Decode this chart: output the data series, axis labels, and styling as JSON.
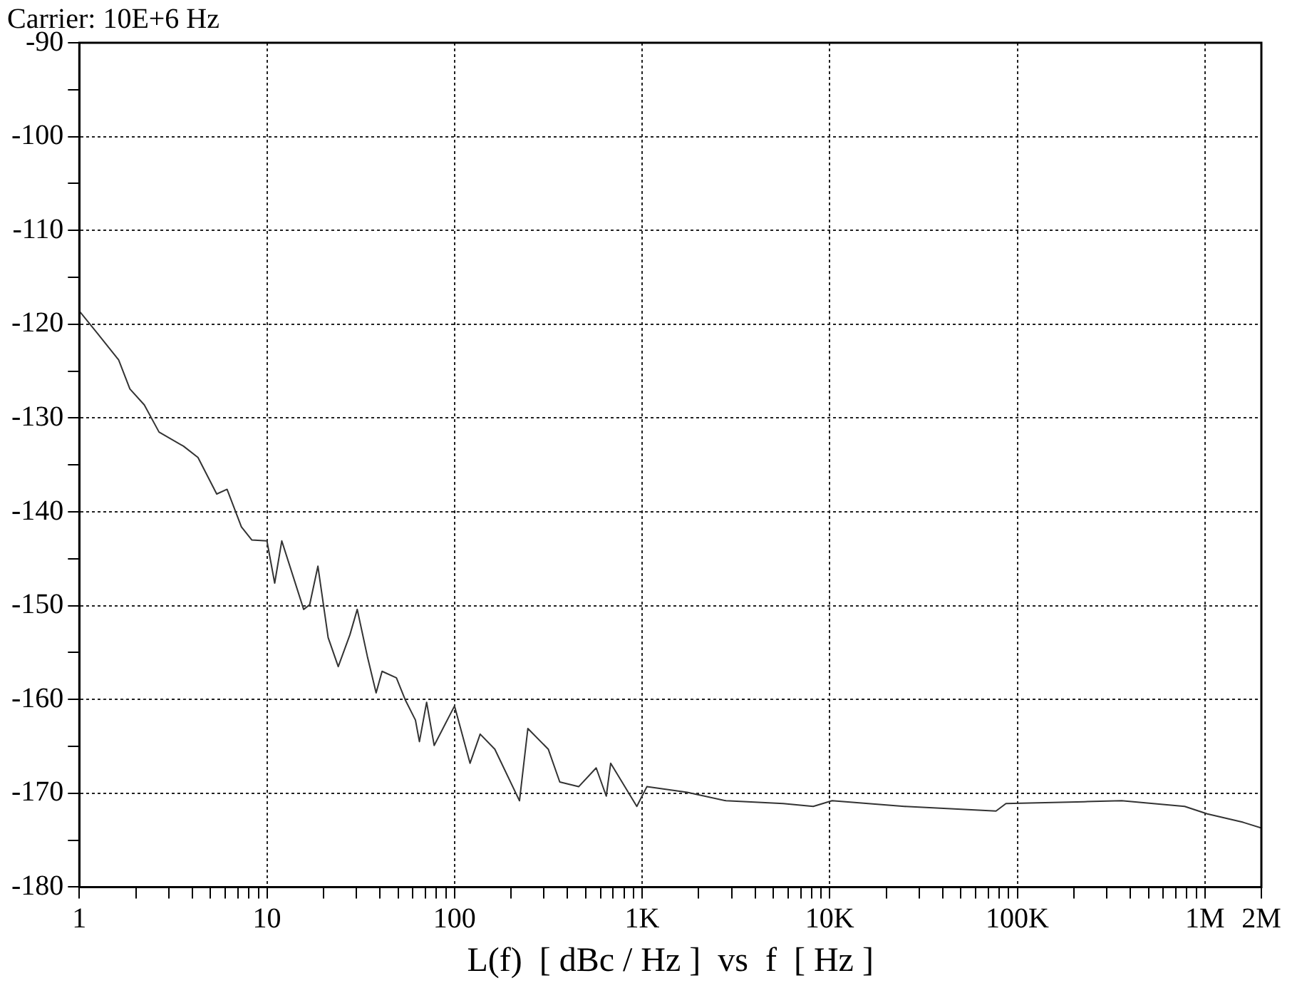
{
  "chart_data": {
    "type": "line",
    "title": "Carrier: 10E+6 Hz",
    "xlabel": "L(f)  [ dBc / Hz ]  vs  f  [ Hz ]",
    "log": "x",
    "grid": true,
    "legend": false,
    "marker": "none",
    "line_style": "solid",
    "xlim": [
      1,
      2000000
    ],
    "ylim": [
      -180,
      -90
    ],
    "xticks": [
      1,
      {
        "value": 2,
        "label": null
      },
      {
        "value": 3,
        "label": null
      },
      {
        "value": 4,
        "label": null
      },
      {
        "value": 5,
        "label": null
      },
      {
        "value": 6,
        "label": null
      },
      {
        "value": 7,
        "label": null
      },
      {
        "value": 8,
        "label": null
      },
      {
        "value": 9,
        "label": null
      },
      10,
      {
        "value": 20,
        "label": null
      },
      {
        "value": 30,
        "label": null
      },
      {
        "value": 40,
        "label": null
      },
      {
        "value": 50,
        "label": null
      },
      {
        "value": 60,
        "label": null
      },
      {
        "value": 70,
        "label": null
      },
      {
        "value": 80,
        "label": null
      },
      {
        "value": 90,
        "label": null
      },
      100,
      {
        "value": 200,
        "label": null
      },
      {
        "value": 300,
        "label": null
      },
      {
        "value": 400,
        "label": null
      },
      {
        "value": 500,
        "label": null
      },
      {
        "value": 600,
        "label": null
      },
      {
        "value": 700,
        "label": null
      },
      {
        "value": 800,
        "label": null
      },
      {
        "value": 900,
        "label": null
      },
      {
        "value": 1000,
        "label": "1K"
      },
      {
        "value": 2000,
        "label": null
      },
      {
        "value": 3000,
        "label": null
      },
      {
        "value": 4000,
        "label": null
      },
      {
        "value": 5000,
        "label": null
      },
      {
        "value": 6000,
        "label": null
      },
      {
        "value": 7000,
        "label": null
      },
      {
        "value": 8000,
        "label": null
      },
      {
        "value": 9000,
        "label": null
      },
      {
        "value": 10000,
        "label": "10K"
      },
      {
        "value": 20000,
        "label": null
      },
      {
        "value": 30000,
        "label": null
      },
      {
        "value": 40000,
        "label": null
      },
      {
        "value": 50000,
        "label": null
      },
      {
        "value": 60000,
        "label": null
      },
      {
        "value": 70000,
        "label": null
      },
      {
        "value": 80000,
        "label": null
      },
      {
        "value": 90000,
        "label": null
      },
      {
        "value": 100000,
        "label": "100K"
      },
      {
        "value": 200000,
        "label": null
      },
      {
        "value": 300000,
        "label": null
      },
      {
        "value": 400000,
        "label": null
      },
      {
        "value": 500000,
        "label": null
      },
      {
        "value": 600000,
        "label": null
      },
      {
        "value": 700000,
        "label": null
      },
      {
        "value": 800000,
        "label": null
      },
      {
        "value": 900000,
        "label": null
      },
      {
        "value": 1000000,
        "label": "1M"
      },
      {
        "value": 2000000,
        "label": "2M"
      }
    ],
    "yticks": [
      -180,
      {
        "value": -175,
        "label": null
      },
      -170,
      {
        "value": -165,
        "label": null
      },
      -160,
      {
        "value": -155,
        "label": null
      },
      -150,
      {
        "value": -145,
        "label": null
      },
      -140,
      {
        "value": -135,
        "label": null
      },
      -130,
      {
        "value": -125,
        "label": null
      },
      -120,
      {
        "value": -115,
        "label": null
      },
      -110,
      {
        "value": -105,
        "label": null
      },
      -100,
      {
        "value": -95,
        "label": null
      },
      -90
    ],
    "series": [
      {
        "color": "#333333",
        "x": [
          1,
          1.24,
          1.62,
          1.86,
          2.22,
          2.66,
          3.59,
          4.29,
          5.4,
          6.13,
          7.31,
          8.3,
          10,
          11,
          12,
          15.7,
          16.9,
          18.7,
          21.2,
          24,
          27.7,
          30.3,
          34.3,
          38.2,
          41.1,
          49,
          54.5,
          61.9,
          65,
          71,
          77.9,
          100,
          121,
          137,
          164,
          222,
          246,
          316,
          364,
          459,
          569,
          644,
          680,
          937,
          1060,
          1740,
          2800,
          5650,
          8170,
          10300,
          25000,
          77000,
          87000,
          227000,
          360000,
          780000,
          1030000,
          1600000,
          2000000
        ],
        "values": [
          -118.6,
          -120.9,
          -123.8,
          -126.9,
          -128.6,
          -131.5,
          -133,
          -134.2,
          -138.1,
          -137.6,
          -141.6,
          -143,
          -143.1,
          -147.6,
          -143.1,
          -150.4,
          -149.9,
          -145.8,
          -153.4,
          -156.5,
          -153.1,
          -150.4,
          -155.4,
          -159.3,
          -157,
          -157.7,
          -160,
          -162.2,
          -164.5,
          -160.3,
          -164.9,
          -160.7,
          -166.8,
          -163.7,
          -165.3,
          -170.8,
          -163.1,
          -165.3,
          -168.8,
          -169.3,
          -167.3,
          -170.3,
          -166.8,
          -171.4,
          -169.3,
          -169.9,
          -170.8,
          -171.1,
          -171.4,
          -170.8,
          -171.4,
          -171.9,
          -171.1,
          -170.9,
          -170.8,
          -171.4,
          -172.2,
          -173.1,
          -173.7
        ]
      }
    ]
  }
}
